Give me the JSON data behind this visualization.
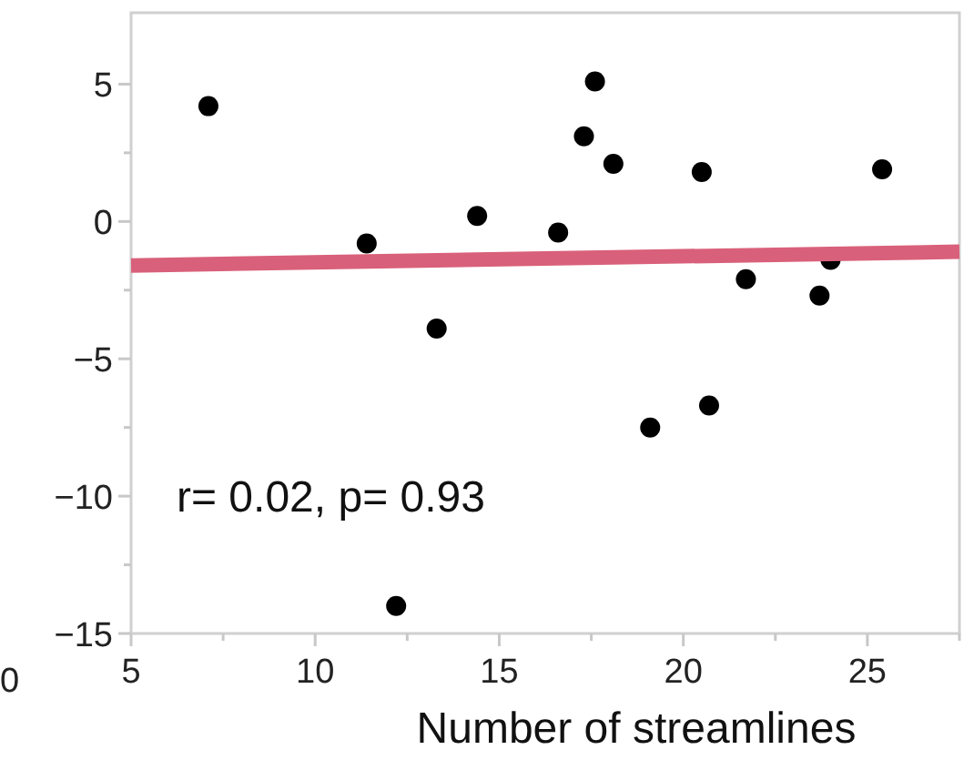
{
  "chart_data": {
    "type": "scatter",
    "xlabel": "Number of streamlines",
    "series": [
      {
        "color": "#000000",
        "marker": "circle",
        "x": [
          7.1,
          11.4,
          14.4,
          13.3,
          12.2,
          16.6,
          17.3,
          17.6,
          18.1,
          20.5,
          21.7,
          23.7,
          24.0,
          25.4,
          19.1,
          20.7
        ],
        "values": [
          4.2,
          -0.8,
          0.2,
          -3.9,
          -14.0,
          -0.4,
          3.1,
          5.1,
          2.1,
          1.8,
          -2.1,
          -2.7,
          -1.4,
          1.9,
          -7.5,
          -6.7
        ]
      },
      {
        "type": "line",
        "color": "#d9607a",
        "marker": "none",
        "x": [
          5,
          27.5
        ],
        "values": [
          -1.6,
          -1.1
        ]
      }
    ],
    "xlim": [
      5,
      27.5
    ],
    "xticks": [
      5,
      {
        "value": 7.5,
        "label": null
      },
      10,
      {
        "value": 12.5,
        "label": null
      },
      15,
      {
        "value": 17.5,
        "label": null
      },
      20,
      {
        "value": 22.5,
        "label": null
      },
      25,
      {
        "value": 27.5,
        "label": null
      }
    ],
    "ylim": [
      -15,
      7.6
    ],
    "yticks": [
      -15,
      {
        "value": -12.5,
        "label": null
      },
      -10,
      {
        "value": -7.5,
        "label": null
      },
      -5,
      {
        "value": -2.5,
        "label": null
      },
      0,
      {
        "value": 2.5,
        "label": null
      },
      5
    ],
    "grid": false,
    "annotations": [
      "r= 0.02, p= 0.93",
      "0"
    ]
  }
}
